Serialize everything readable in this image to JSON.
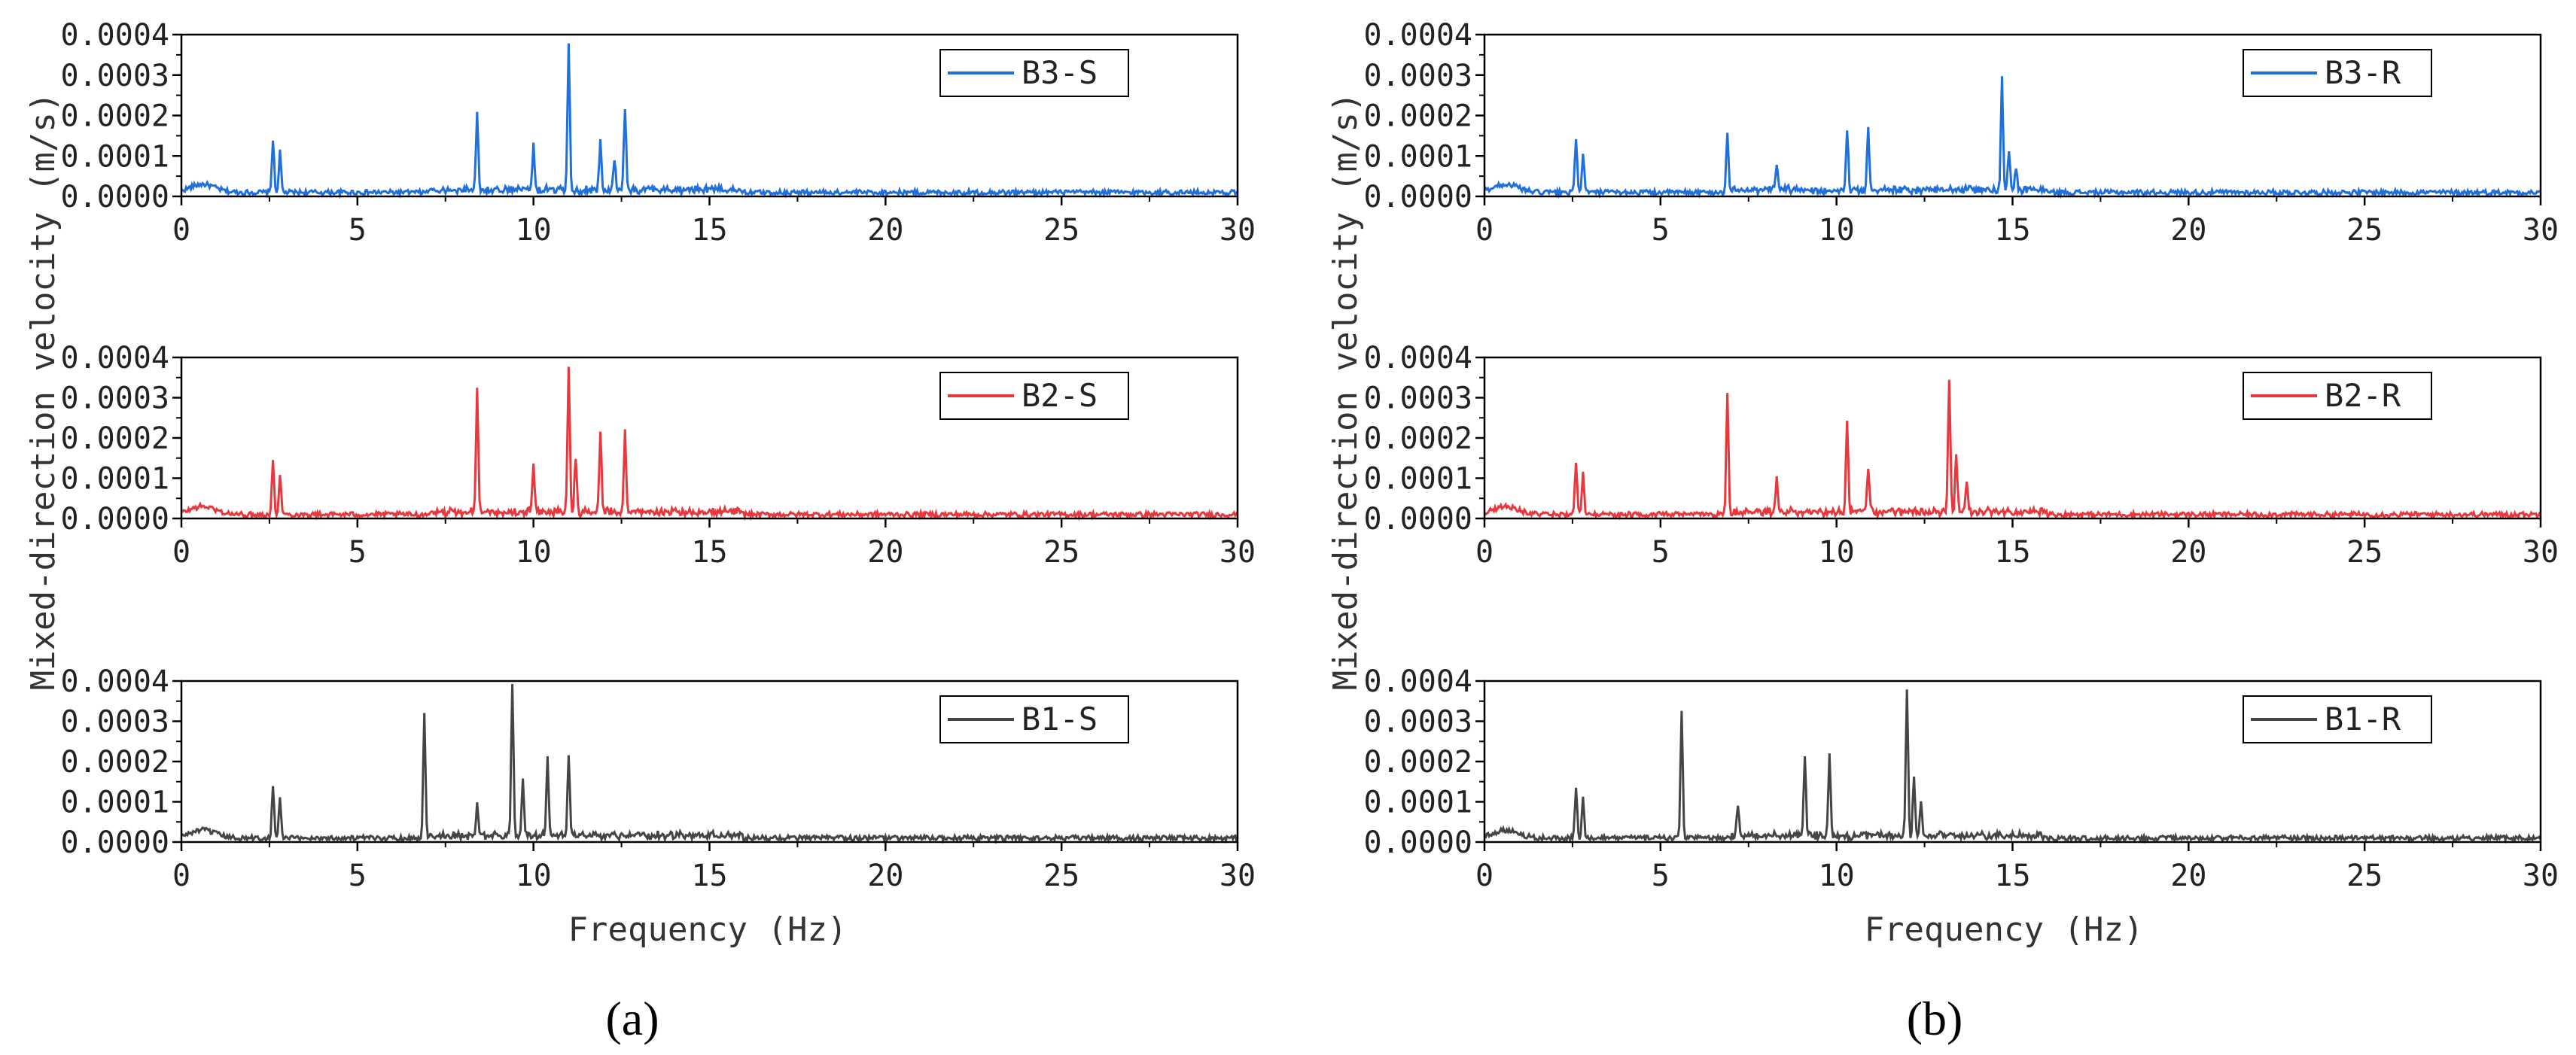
{
  "figure": {
    "panel_labels": [
      "(a)",
      "(b)"
    ],
    "ylabel": "Mixed-direction velocity (m/s)",
    "xlabel": "Frequency (Hz)"
  },
  "chart_data": [
    {
      "type": "line",
      "name": "B3-S",
      "color": "#1f6fdc",
      "xlim": [
        0,
        30
      ],
      "ylim": [
        0,
        0.0004
      ],
      "xticks": [
        "0",
        "5",
        "10",
        "15",
        "20",
        "25",
        "30"
      ],
      "yticks": [
        "0.0000",
        "0.0001",
        "0.0002",
        "0.0003",
        "0.0004"
      ],
      "peaks": [
        [
          2.6,
          0.00013
        ],
        [
          2.8,
          0.0001
        ],
        [
          8.4,
          0.0002
        ],
        [
          10.0,
          0.00011
        ],
        [
          11.0,
          0.00037
        ],
        [
          11.9,
          0.00012
        ],
        [
          12.3,
          8e-05
        ],
        [
          12.6,
          0.0002
        ]
      ],
      "ylabel": "",
      "xlabel": "",
      "legend": "top-right"
    },
    {
      "type": "line",
      "name": "B2-S",
      "color": "#e8383d",
      "xlim": [
        0,
        30
      ],
      "ylim": [
        0,
        0.0004
      ],
      "xticks": [
        "0",
        "5",
        "10",
        "15",
        "20",
        "25",
        "30"
      ],
      "yticks": [
        "0.0000",
        "0.0001",
        "0.0002",
        "0.0003",
        "0.0004"
      ],
      "peaks": [
        [
          2.6,
          0.00013
        ],
        [
          2.8,
          0.0001
        ],
        [
          8.4,
          0.00031
        ],
        [
          10.0,
          0.00011
        ],
        [
          11.0,
          0.00037
        ],
        [
          11.2,
          0.00014
        ],
        [
          11.9,
          0.0002
        ],
        [
          12.6,
          0.0002
        ]
      ],
      "legend": "top-right"
    },
    {
      "type": "line",
      "name": "B1-S",
      "color": "#454545",
      "xlim": [
        0,
        30
      ],
      "ylim": [
        0,
        0.0004
      ],
      "xticks": [
        "0",
        "5",
        "10",
        "15",
        "20",
        "25",
        "30"
      ],
      "yticks": [
        "0.0000",
        "0.0001",
        "0.0002",
        "0.0003",
        "0.0004"
      ],
      "peaks": [
        [
          2.6,
          0.00013
        ],
        [
          2.8,
          0.0001
        ],
        [
          6.9,
          0.00031
        ],
        [
          8.4,
          8e-05
        ],
        [
          9.4,
          0.00037
        ],
        [
          9.7,
          0.00014
        ],
        [
          10.4,
          0.0002
        ],
        [
          11.0,
          0.0002
        ]
      ],
      "legend": "top-right"
    },
    {
      "type": "line",
      "name": "B3-R",
      "color": "#1f6fdc",
      "xlim": [
        0,
        30
      ],
      "ylim": [
        0,
        0.0004
      ],
      "xticks": [
        "0",
        "5",
        "10",
        "15",
        "20",
        "25",
        "30"
      ],
      "yticks": [
        "0.0000",
        "0.0001",
        "0.0002",
        "0.0003",
        "0.0004"
      ],
      "peaks": [
        [
          2.6,
          0.00013
        ],
        [
          2.8,
          0.0001
        ],
        [
          6.9,
          0.00015
        ],
        [
          8.3,
          7e-05
        ],
        [
          10.3,
          0.00015
        ],
        [
          10.9,
          0.00015
        ],
        [
          14.7,
          0.00028
        ],
        [
          14.9,
          0.0001
        ],
        [
          15.1,
          6e-05
        ]
      ],
      "legend": "top-right"
    },
    {
      "type": "line",
      "name": "B2-R",
      "color": "#e8383d",
      "xlim": [
        0,
        30
      ],
      "ylim": [
        0,
        0.0004
      ],
      "xticks": [
        "0",
        "5",
        "10",
        "15",
        "20",
        "25",
        "30"
      ],
      "yticks": [
        "0.0000",
        "0.0001",
        "0.0002",
        "0.0003",
        "0.0004"
      ],
      "peaks": [
        [
          2.6,
          0.00013
        ],
        [
          2.8,
          0.0001
        ],
        [
          6.9,
          0.0003
        ],
        [
          8.3,
          8e-05
        ],
        [
          10.3,
          0.00022
        ],
        [
          10.9,
          0.00011
        ],
        [
          13.2,
          0.00033
        ],
        [
          13.4,
          0.00014
        ],
        [
          13.7,
          8e-05
        ]
      ],
      "legend": "top-right"
    },
    {
      "type": "line",
      "name": "B1-R",
      "color": "#454545",
      "xlim": [
        0,
        30
      ],
      "ylim": [
        0,
        0.0004
      ],
      "xticks": [
        "0",
        "5",
        "10",
        "15",
        "20",
        "25",
        "30"
      ],
      "yticks": [
        "0.0000",
        "0.0001",
        "0.0002",
        "0.0003",
        "0.0004"
      ],
      "peaks": [
        [
          2.6,
          0.00013
        ],
        [
          2.8,
          0.0001
        ],
        [
          5.6,
          0.00031
        ],
        [
          7.2,
          8e-05
        ],
        [
          9.1,
          0.0002
        ],
        [
          9.8,
          0.0002
        ],
        [
          12.0,
          0.00037
        ],
        [
          12.2,
          0.00014
        ],
        [
          12.4,
          9e-05
        ]
      ],
      "legend": "top-right"
    }
  ]
}
